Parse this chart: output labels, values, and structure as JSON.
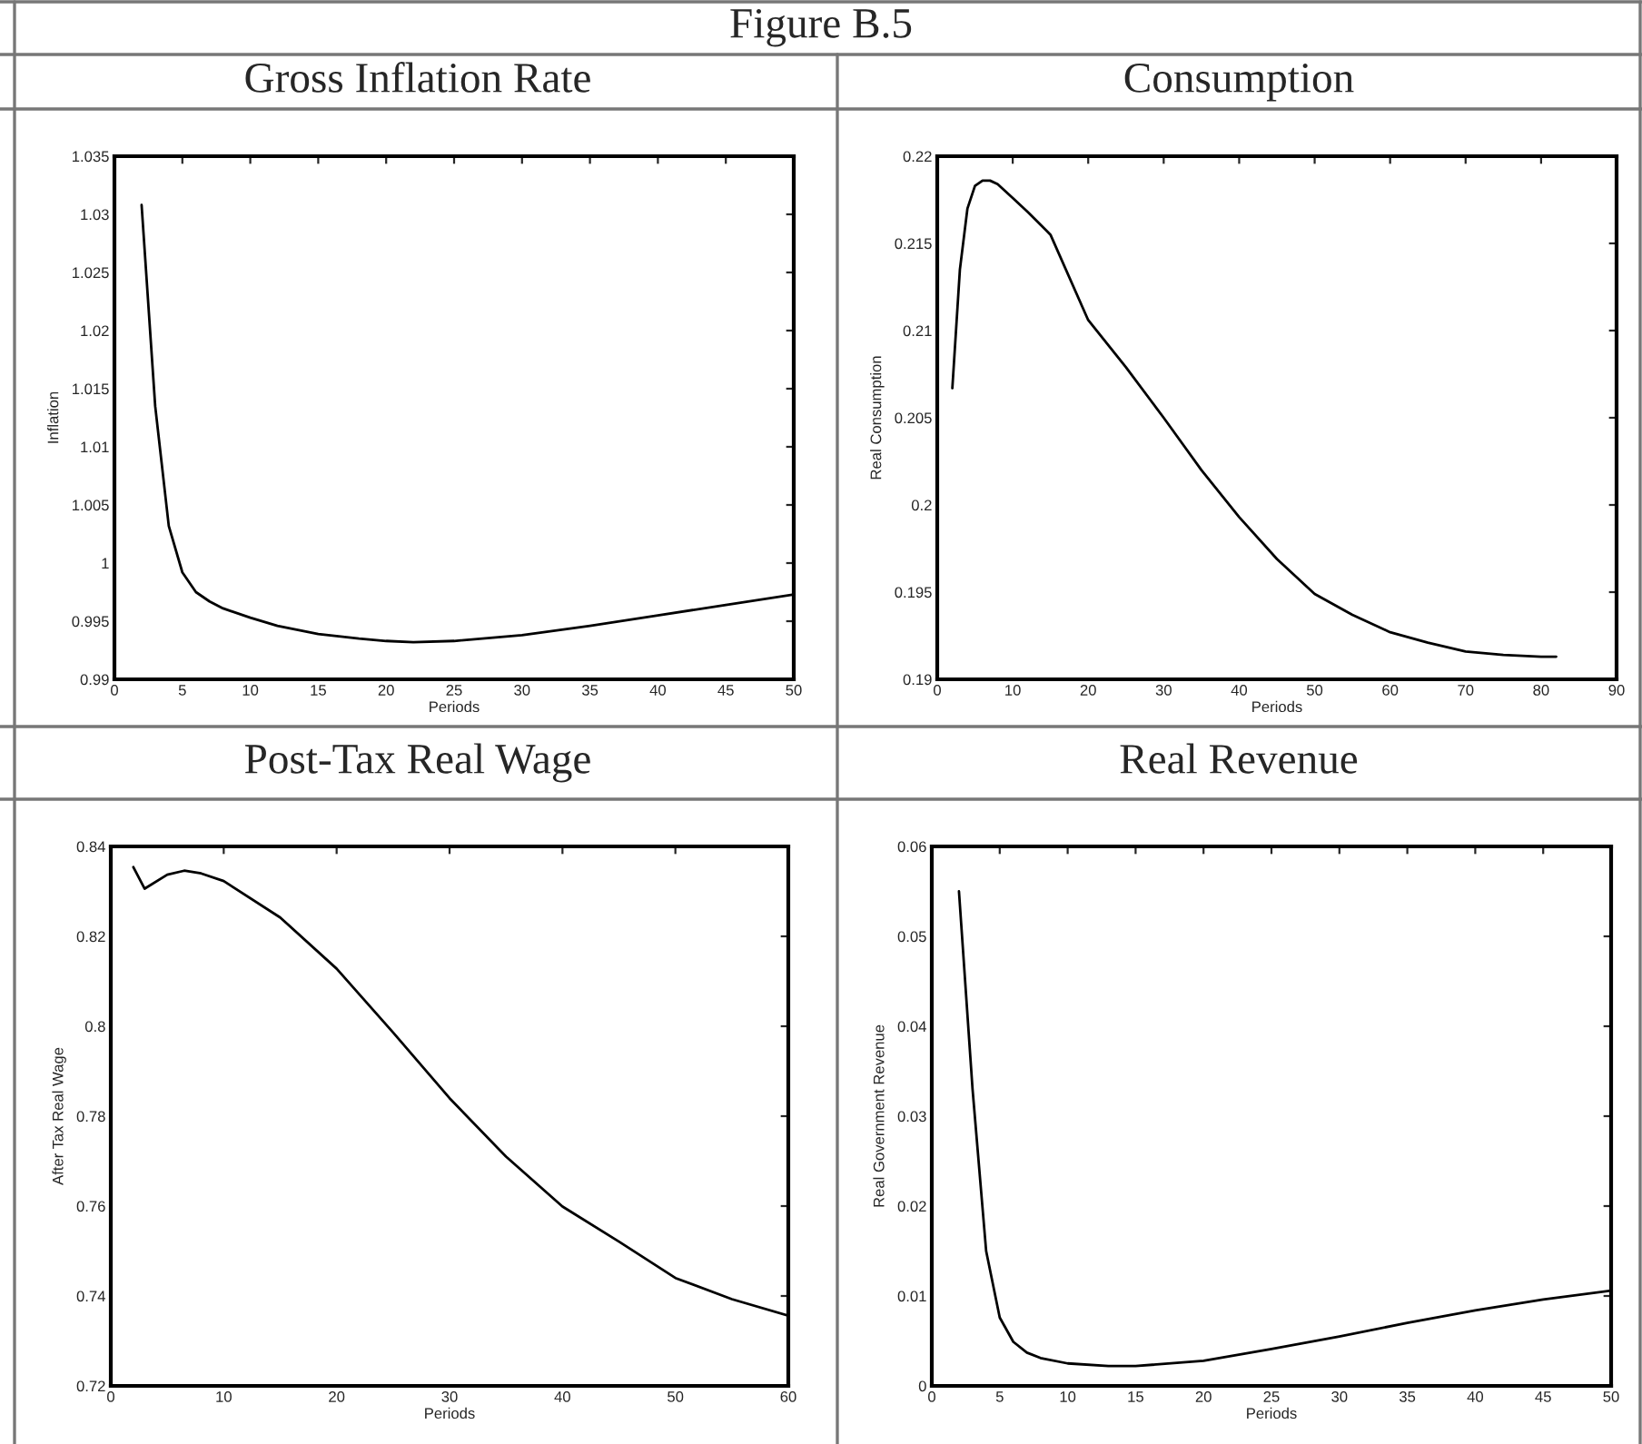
{
  "chart_data": [
    {
      "type": "line",
      "title": "Gross Inflation Rate",
      "xlabel": "Periods",
      "ylabel": "Inflation",
      "annotations": [
        "Figure B.5"
      ],
      "series": [
        {
          "color": "#000000",
          "x": [
            2,
            3,
            4,
            5,
            6,
            7,
            8,
            10,
            12,
            15,
            18,
            20,
            22,
            25,
            30,
            35,
            40,
            45,
            50
          ],
          "values": [
            1.0308,
            1.0135,
            1.0032,
            0.9992,
            0.9975,
            0.9967,
            0.9961,
            0.9953,
            0.9946,
            0.9939,
            0.9935,
            0.9933,
            0.9932,
            0.9933,
            0.9938,
            0.9946,
            0.9955,
            0.9964,
            0.9973
          ]
        }
      ],
      "xlim": [
        0,
        50
      ],
      "xticks": [
        0,
        5,
        10,
        15,
        20,
        25,
        30,
        35,
        40,
        45,
        50
      ],
      "ylim": [
        0.99,
        1.035
      ],
      "yticks": [
        0.99,
        0.995,
        1,
        1.005,
        1.01,
        1.015,
        1.02,
        1.025,
        1.03,
        1.035
      ],
      "grid": false,
      "legend": false
    },
    {
      "type": "line",
      "title": "Consumption",
      "xlabel": "Periods",
      "ylabel": "Real Consumption",
      "series": [
        {
          "color": "#000000",
          "x": [
            2,
            3,
            4,
            5,
            6,
            7,
            8,
            10,
            12,
            15,
            20,
            25,
            30,
            35,
            40,
            45,
            50,
            55,
            60,
            65,
            70,
            75,
            80,
            82
          ],
          "values": [
            0.2067,
            0.2135,
            0.217,
            0.2183,
            0.2186,
            0.2186,
            0.2184,
            0.2176,
            0.2168,
            0.2155,
            0.2106,
            0.2079,
            0.205,
            0.202,
            0.1993,
            0.1969,
            0.1949,
            0.1937,
            0.1927,
            0.1921,
            0.1916,
            0.1914,
            0.1913,
            0.1913
          ]
        }
      ],
      "xlim": [
        0,
        90
      ],
      "xticks": [
        0,
        10,
        20,
        30,
        40,
        50,
        60,
        70,
        80,
        90
      ],
      "ylim": [
        0.19,
        0.22
      ],
      "yticks": [
        0.19,
        0.195,
        0.2,
        0.205,
        0.21,
        0.215,
        0.22
      ],
      "grid": false,
      "legend": false
    },
    {
      "type": "line",
      "title": "Post-Tax Real Wage",
      "xlabel": "Periods",
      "ylabel": "After Tax Real Wage",
      "series": [
        {
          "color": "#000000",
          "x": [
            2,
            3,
            5,
            6.5,
            8,
            10,
            15,
            20,
            25,
            30,
            35,
            40,
            45,
            50,
            55,
            60
          ],
          "values": [
            0.8354,
            0.8306,
            0.8337,
            0.8346,
            0.834,
            0.8323,
            0.8242,
            0.8128,
            0.7986,
            0.784,
            0.771,
            0.7599,
            0.7521,
            0.744,
            0.7393,
            0.7356
          ]
        }
      ],
      "xlim": [
        0,
        60
      ],
      "xticks": [
        0,
        10,
        20,
        30,
        40,
        50,
        60
      ],
      "ylim": [
        0.72,
        0.84
      ],
      "yticks": [
        0.72,
        0.74,
        0.76,
        0.78,
        0.8,
        0.82,
        0.84
      ],
      "grid": false,
      "legend": false
    },
    {
      "type": "line",
      "title": "Real Revenue",
      "xlabel": "Periods",
      "ylabel": "Real Government Revenue",
      "series": [
        {
          "color": "#000000",
          "x": [
            2,
            3,
            4,
            5,
            6,
            7,
            8,
            10,
            13,
            15,
            20,
            25,
            30,
            35,
            40,
            45,
            50
          ],
          "values": [
            0.055,
            0.033,
            0.015,
            0.0076,
            0.0049,
            0.0037,
            0.0031,
            0.0025,
            0.0022,
            0.0022,
            0.0028,
            0.0041,
            0.0055,
            0.007,
            0.0084,
            0.0096,
            0.0106
          ]
        }
      ],
      "xlim": [
        0,
        50
      ],
      "xticks": [
        0,
        5,
        10,
        15,
        20,
        25,
        30,
        35,
        40,
        45,
        50
      ],
      "ylim": [
        0,
        0.06
      ],
      "yticks": [
        0,
        0.01,
        0.02,
        0.03,
        0.04,
        0.05,
        0.06
      ],
      "grid": false,
      "legend": false
    }
  ]
}
